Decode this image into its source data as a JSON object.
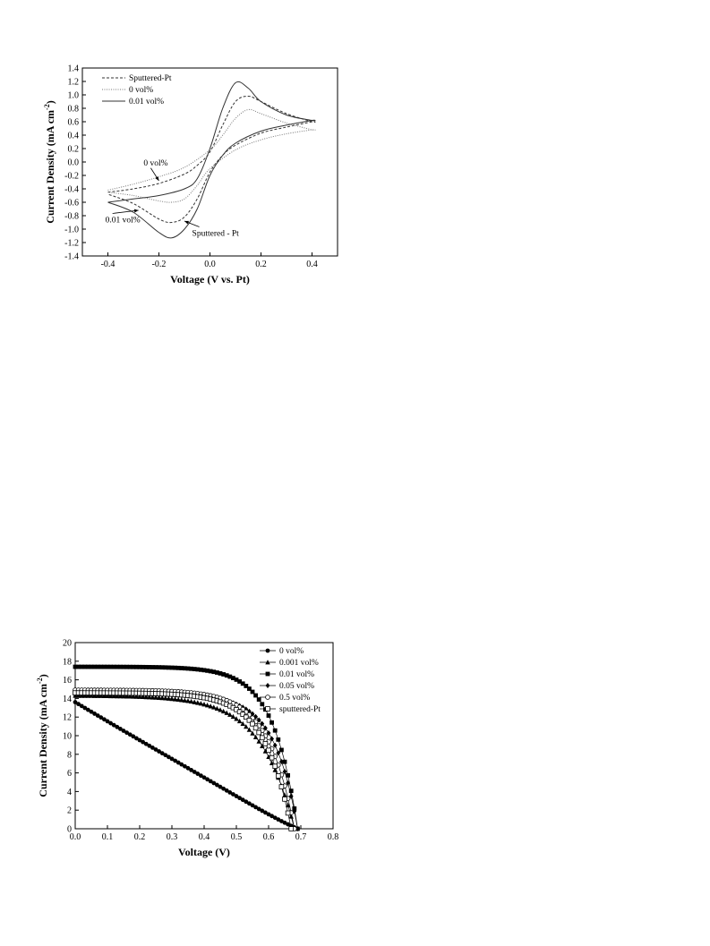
{
  "chart_data": [
    {
      "type": "line",
      "xlabel": "Voltage (V vs. Pt)",
      "ylabel": "Current Density (mA cm",
      "ylabel_sup": "-2",
      "ylabel_close": ")",
      "xlim": [
        -0.5,
        0.5
      ],
      "ylim": [
        -1.4,
        1.4
      ],
      "xticks": [
        -0.4,
        -0.2,
        0.0,
        0.2,
        0.4
      ],
      "xtick_labels": [
        "-0.4",
        "-0.2",
        "0.0",
        "0.2",
        "0.4"
      ],
      "yticks": [
        -1.4,
        -1.2,
        -1.0,
        -0.8,
        -0.6,
        -0.4,
        -0.2,
        0.0,
        0.2,
        0.4,
        0.6,
        0.8,
        1.0,
        1.2,
        1.4
      ],
      "ytick_labels": [
        "-1.4",
        "-1.2",
        "-1.0",
        "-0.8",
        "-0.6",
        "-0.4",
        "-0.2",
        "0.0",
        "0.2",
        "0.4",
        "0.6",
        "0.8",
        "1.0",
        "1.2",
        "1.4"
      ],
      "grid": false,
      "legend_position": "top-left",
      "series": [
        {
          "name": "Sputtered-Pt",
          "style": "dashed",
          "color": "#333333",
          "x": [
            -0.4,
            -0.3,
            -0.2,
            -0.1,
            -0.05,
            0.0,
            0.05,
            0.1,
            0.15,
            0.2,
            0.3,
            0.4,
            0.4,
            0.3,
            0.2,
            0.1,
            0.05,
            0.0,
            -0.05,
            -0.1,
            -0.15,
            -0.2,
            -0.3,
            -0.4
          ],
          "y": [
            -0.45,
            -0.4,
            -0.32,
            -0.18,
            -0.05,
            0.15,
            0.55,
            0.9,
            0.98,
            0.9,
            0.72,
            0.6,
            0.6,
            0.52,
            0.43,
            0.25,
            0.1,
            -0.15,
            -0.55,
            -0.82,
            -0.9,
            -0.85,
            -0.62,
            -0.48
          ]
        },
        {
          "name": "0 vol%",
          "style": "dotted",
          "color": "#777777",
          "x": [
            -0.4,
            -0.3,
            -0.2,
            -0.1,
            0.0,
            0.05,
            0.1,
            0.15,
            0.2,
            0.3,
            0.4,
            0.4,
            0.3,
            0.2,
            0.1,
            0.0,
            -0.05,
            -0.1,
            -0.15,
            -0.2,
            -0.3,
            -0.4
          ],
          "y": [
            -0.42,
            -0.33,
            -0.22,
            -0.08,
            0.18,
            0.4,
            0.65,
            0.78,
            0.72,
            0.58,
            0.48,
            0.48,
            0.42,
            0.33,
            0.18,
            -0.1,
            -0.35,
            -0.55,
            -0.6,
            -0.58,
            -0.5,
            -0.45
          ]
        },
        {
          "name": "0.01 vol%",
          "style": "solid",
          "color": "#333333",
          "x": [
            -0.4,
            -0.3,
            -0.2,
            -0.1,
            -0.05,
            0.0,
            0.05,
            0.1,
            0.15,
            0.2,
            0.3,
            0.4,
            0.4,
            0.3,
            0.2,
            0.1,
            0.05,
            0.0,
            -0.05,
            -0.1,
            -0.15,
            -0.2,
            -0.3,
            -0.4
          ],
          "y": [
            -0.6,
            -0.55,
            -0.5,
            -0.4,
            -0.25,
            0.2,
            0.8,
            1.18,
            1.1,
            0.9,
            0.7,
            0.62,
            0.62,
            0.55,
            0.46,
            0.28,
            0.1,
            -0.2,
            -0.7,
            -1.0,
            -1.13,
            -1.05,
            -0.75,
            -0.6
          ]
        }
      ],
      "annotations": [
        {
          "text": "0 vol%",
          "x": -0.26,
          "y": -0.05,
          "arrow_to": [
            -0.2,
            -0.28
          ]
        },
        {
          "text": "0.01 vol%",
          "x": -0.41,
          "y": -0.9,
          "arrow_to": [
            -0.28,
            -0.72
          ]
        },
        {
          "text": "Sputtered - Pt",
          "x": -0.07,
          "y": -1.1,
          "arrow_to": [
            -0.1,
            -0.88
          ]
        }
      ]
    },
    {
      "type": "line",
      "xlabel": "Voltage (V)",
      "ylabel": "Current Density (mA cm",
      "ylabel_sup": "-2",
      "ylabel_close": ")",
      "xlim": [
        0.0,
        0.8
      ],
      "ylim": [
        0,
        20
      ],
      "xticks": [
        0.0,
        0.1,
        0.2,
        0.3,
        0.4,
        0.5,
        0.6,
        0.7,
        0.8
      ],
      "xtick_labels": [
        "0.0",
        "0.1",
        "0.2",
        "0.3",
        "0.4",
        "0.5",
        "0.6",
        "0.7",
        "0.8"
      ],
      "yticks": [
        0,
        2,
        4,
        6,
        8,
        10,
        12,
        14,
        16,
        18,
        20
      ],
      "ytick_labels": [
        "0",
        "2",
        "4",
        "6",
        "8",
        "10",
        "12",
        "14",
        "16",
        "18",
        "20"
      ],
      "grid": false,
      "legend_position": "top-right",
      "series": [
        {
          "name": "0 vol%",
          "marker": "filled-circle",
          "isc": 13.6,
          "voc": 0.69,
          "shape": "linear"
        },
        {
          "name": "0.001 vol%",
          "marker": "filled-triangle",
          "isc": 14.3,
          "voc": 0.68,
          "shape": "diode",
          "knee": 0.35
        },
        {
          "name": "0.01 vol%",
          "marker": "filled-square",
          "isc": 17.4,
          "voc": 0.69,
          "shape": "diode",
          "knee": 0.45
        },
        {
          "name": "0.05 vol%",
          "marker": "filled-diamond",
          "isc": 14.4,
          "voc": 0.69,
          "shape": "diode",
          "knee": 0.46
        },
        {
          "name": "0.5 vol%",
          "marker": "open-circle",
          "isc": 14.9,
          "voc": 0.68,
          "shape": "diode",
          "knee": 0.42
        },
        {
          "name": "sputtered-Pt",
          "marker": "open-square",
          "isc": 14.6,
          "voc": 0.67,
          "shape": "diode",
          "knee": 0.41
        }
      ]
    }
  ]
}
